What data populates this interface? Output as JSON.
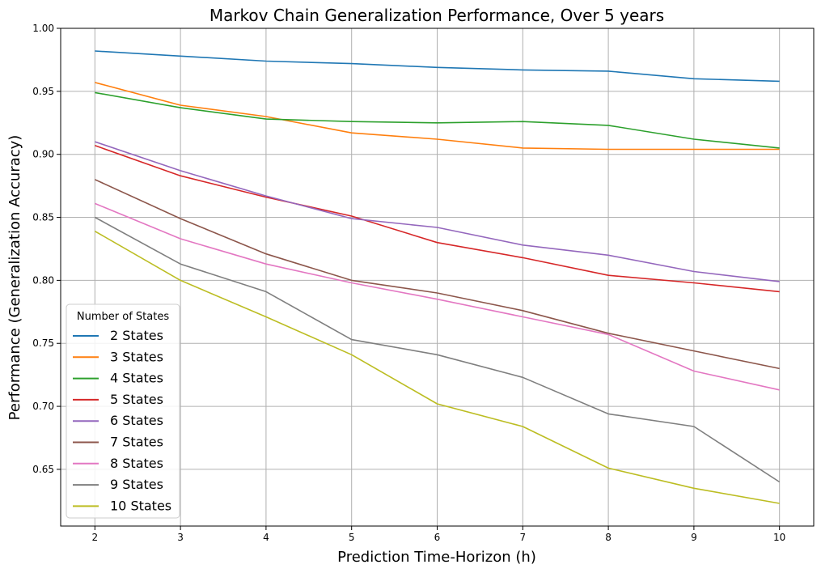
{
  "chart_data": {
    "type": "line",
    "title": "Markov Chain Generalization Performance, Over 5 years",
    "xlabel": "Prediction Time-Horizon (h)",
    "ylabel": "Performance (Generalization Accuracy)",
    "x": [
      2,
      3,
      4,
      5,
      6,
      7,
      8,
      9,
      10
    ],
    "xlim": [
      1.6,
      10.4
    ],
    "ylim": [
      0.605,
      1.0
    ],
    "xticks": [
      "2",
      "3",
      "4",
      "5",
      "6",
      "7",
      "8",
      "9",
      "10"
    ],
    "yticks": [
      "0.65",
      "0.70",
      "0.75",
      "0.80",
      "0.85",
      "0.90",
      "0.95",
      "1.00"
    ],
    "grid": true,
    "legend": {
      "title": "Number of States",
      "placement": "lower-left"
    },
    "series": [
      {
        "name": "2 States",
        "color": "#1f77b4",
        "values": [
          0.982,
          0.978,
          0.974,
          0.972,
          0.969,
          0.967,
          0.966,
          0.96,
          0.958
        ]
      },
      {
        "name": "3 States",
        "color": "#ff7f0e",
        "values": [
          0.957,
          0.939,
          0.93,
          0.917,
          0.912,
          0.905,
          0.904,
          0.904,
          0.904
        ]
      },
      {
        "name": "4 States",
        "color": "#2ca02c",
        "values": [
          0.949,
          0.937,
          0.928,
          0.926,
          0.925,
          0.926,
          0.923,
          0.912,
          0.905
        ]
      },
      {
        "name": "5 States",
        "color": "#d62728",
        "values": [
          0.907,
          0.883,
          0.866,
          0.851,
          0.83,
          0.818,
          0.804,
          0.798,
          0.791
        ]
      },
      {
        "name": "6 States",
        "color": "#9467bd",
        "values": [
          0.91,
          0.887,
          0.867,
          0.849,
          0.842,
          0.828,
          0.82,
          0.807,
          0.799
        ]
      },
      {
        "name": "7 States",
        "color": "#8c564b",
        "values": [
          0.88,
          0.849,
          0.821,
          0.8,
          0.79,
          0.776,
          0.758,
          0.744,
          0.73
        ]
      },
      {
        "name": "8 States",
        "color": "#e377c2",
        "values": [
          0.861,
          0.833,
          0.813,
          0.798,
          0.785,
          0.771,
          0.757,
          0.728,
          0.713
        ]
      },
      {
        "name": "9 States",
        "color": "#7f7f7f",
        "values": [
          0.85,
          0.813,
          0.791,
          0.753,
          0.741,
          0.723,
          0.694,
          0.684,
          0.64
        ]
      },
      {
        "name": "10 States",
        "color": "#bcbd22",
        "values": [
          0.839,
          0.8,
          0.771,
          0.741,
          0.702,
          0.684,
          0.651,
          0.635,
          0.623
        ]
      }
    ]
  }
}
